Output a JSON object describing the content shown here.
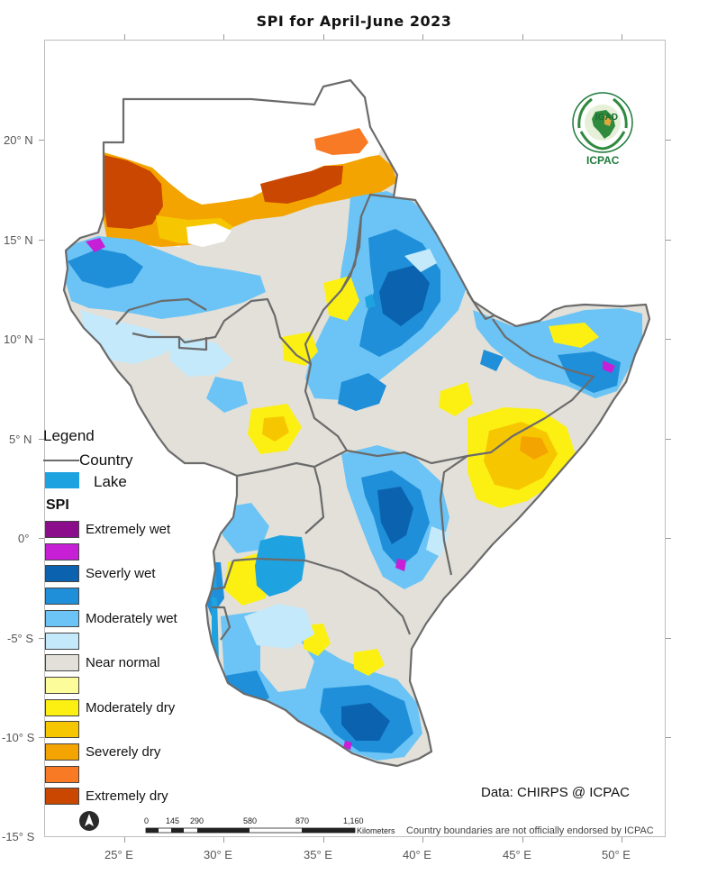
{
  "title": "SPI  for April-June  2023",
  "latitude_labels": [
    "20° N",
    "15° N",
    "10° N",
    "5° N",
    "0°",
    "-5° S",
    "-10° S",
    "-15° S"
  ],
  "longitude_labels": [
    "25° E",
    "30° E",
    "35° E",
    "40° E",
    "45° E",
    "50° E"
  ],
  "legend": {
    "title": "Legend",
    "country_label": "Country",
    "lake_label": "Lake",
    "spi_title": "SPI",
    "classes": [
      {
        "label": "Extremely wet",
        "color": "#8b0d8b"
      },
      {
        "label": "",
        "color": "#c71fd6"
      },
      {
        "label": "Severly wet",
        "color": "#0b63b0"
      },
      {
        "label": "",
        "color": "#1f8fd9"
      },
      {
        "label": "Moderately wet",
        "color": "#6bc4f5"
      },
      {
        "label": "",
        "color": "#c4e9fb"
      },
      {
        "label": "Near normal",
        "color": "#e2e0d9"
      },
      {
        "label": "",
        "color": "#fcfc9b"
      },
      {
        "label": "Moderately dry",
        "color": "#fcf013"
      },
      {
        "label": "",
        "color": "#f6c700"
      },
      {
        "label": "Severely dry",
        "color": "#f4a400"
      },
      {
        "label": "",
        "color": "#f97a25"
      },
      {
        "label": "Extremely dry",
        "color": "#c94700"
      }
    ]
  },
  "logo": {
    "top_text": "IGAD",
    "bottom_text": "ICPAC"
  },
  "credit": "Data: CHIRPS @ ICPAC",
  "scale_bar": {
    "labels": [
      "0",
      "145",
      "290",
      "580",
      "870",
      "1,160"
    ],
    "unit": "Kilometers"
  },
  "disclaimer": "Country boundaries are not officially endorsed by ICPAC",
  "colors": {
    "country_border": "#6b6b6b",
    "lake": "#1fa3e0",
    "no_data": "#ffffff"
  },
  "icons": {
    "north_arrow": "north-arrow-icon",
    "logo": "igad-icpac-logo-icon"
  }
}
